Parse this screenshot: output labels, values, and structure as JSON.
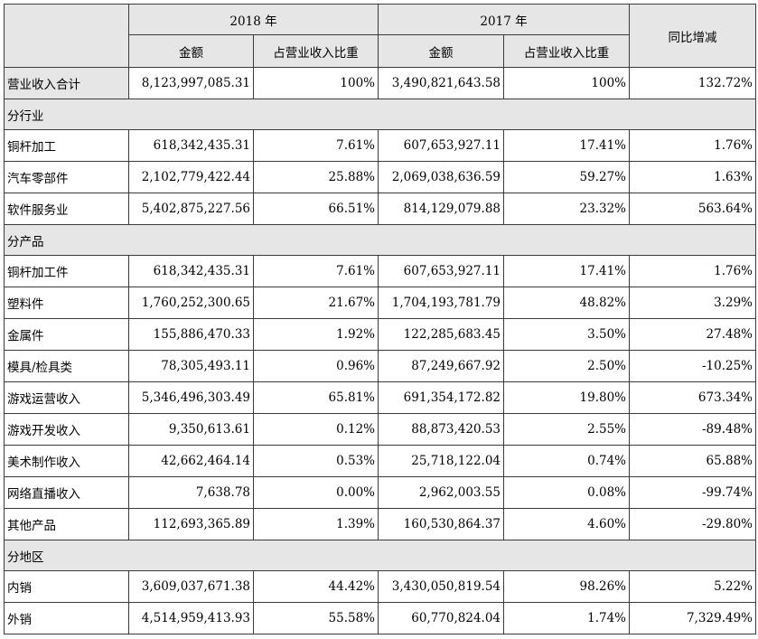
{
  "header": {
    "year_2018": "2018 年",
    "year_2017": "2017 年",
    "yoy": "同比增减",
    "amount_2018": "金额",
    "ratio_2018": "占营业收入比重",
    "amount_2017": "金额",
    "ratio_2017": "占营业收入比重"
  },
  "total": {
    "label": "营业收入合计",
    "a2018": "8,123,997,085.31",
    "r2018": "100%",
    "a2017": "3,490,821,643.58",
    "r2017": "100%",
    "yoy": "132.72%"
  },
  "sections": [
    {
      "title": "分行业",
      "rows": [
        {
          "label": "铜杆加工",
          "a2018": "618,342,435.31",
          "r2018": "7.61%",
          "a2017": "607,653,927.11",
          "r2017": "17.41%",
          "yoy": "1.76%"
        },
        {
          "label": "汽车零部件",
          "a2018": "2,102,779,422.44",
          "r2018": "25.88%",
          "a2017": "2,069,038,636.59",
          "r2017": "59.27%",
          "yoy": "1.63%"
        },
        {
          "label": "软件服务业",
          "a2018": "5,402,875,227.56",
          "r2018": "66.51%",
          "a2017": "814,129,079.88",
          "r2017": "23.32%",
          "yoy": "563.64%"
        }
      ]
    },
    {
      "title": "分产品",
      "rows": [
        {
          "label": "铜杆加工件",
          "a2018": "618,342,435.31",
          "r2018": "7.61%",
          "a2017": "607,653,927.11",
          "r2017": "17.41%",
          "yoy": "1.76%"
        },
        {
          "label": "塑料件",
          "a2018": "1,760,252,300.65",
          "r2018": "21.67%",
          "a2017": "1,704,193,781.79",
          "r2017": "48.82%",
          "yoy": "3.29%"
        },
        {
          "label": "金属件",
          "a2018": "155,886,470.33",
          "r2018": "1.92%",
          "a2017": "122,285,683.45",
          "r2017": "3.50%",
          "yoy": "27.48%"
        },
        {
          "label": "模具/检具类",
          "a2018": "78,305,493.11",
          "r2018": "0.96%",
          "a2017": "87,249,667.92",
          "r2017": "2.50%",
          "yoy": "-10.25%"
        },
        {
          "label": "游戏运营收入",
          "a2018": "5,346,496,303.49",
          "r2018": "65.81%",
          "a2017": "691,354,172.82",
          "r2017": "19.80%",
          "yoy": "673.34%"
        },
        {
          "label": "游戏开发收入",
          "a2018": "9,350,613.61",
          "r2018": "0.12%",
          "a2017": "88,873,420.53",
          "r2017": "2.55%",
          "yoy": "-89.48%"
        },
        {
          "label": "美术制作收入",
          "a2018": "42,662,464.14",
          "r2018": "0.53%",
          "a2017": "25,718,122.04",
          "r2017": "0.74%",
          "yoy": "65.88%"
        },
        {
          "label": "网络直播收入",
          "a2018": "7,638.78",
          "r2018": "0.00%",
          "a2017": "2,962,003.55",
          "r2017": "0.08%",
          "yoy": "-99.74%"
        },
        {
          "label": "其他产品",
          "a2018": "112,693,365.89",
          "r2018": "1.39%",
          "a2017": "160,530,864.37",
          "r2017": "4.60%",
          "yoy": "-29.80%"
        }
      ]
    },
    {
      "title": "分地区",
      "rows": [
        {
          "label": "内销",
          "a2018": "3,609,037,671.38",
          "r2018": "44.42%",
          "a2017": "3,430,050,819.54",
          "r2017": "98.26%",
          "yoy": "5.22%"
        },
        {
          "label": "外销",
          "a2018": "4,514,959,413.93",
          "r2018": "55.58%",
          "a2017": "60,770,824.04",
          "r2017": "1.74%",
          "yoy": "7,329.49%"
        }
      ]
    }
  ]
}
